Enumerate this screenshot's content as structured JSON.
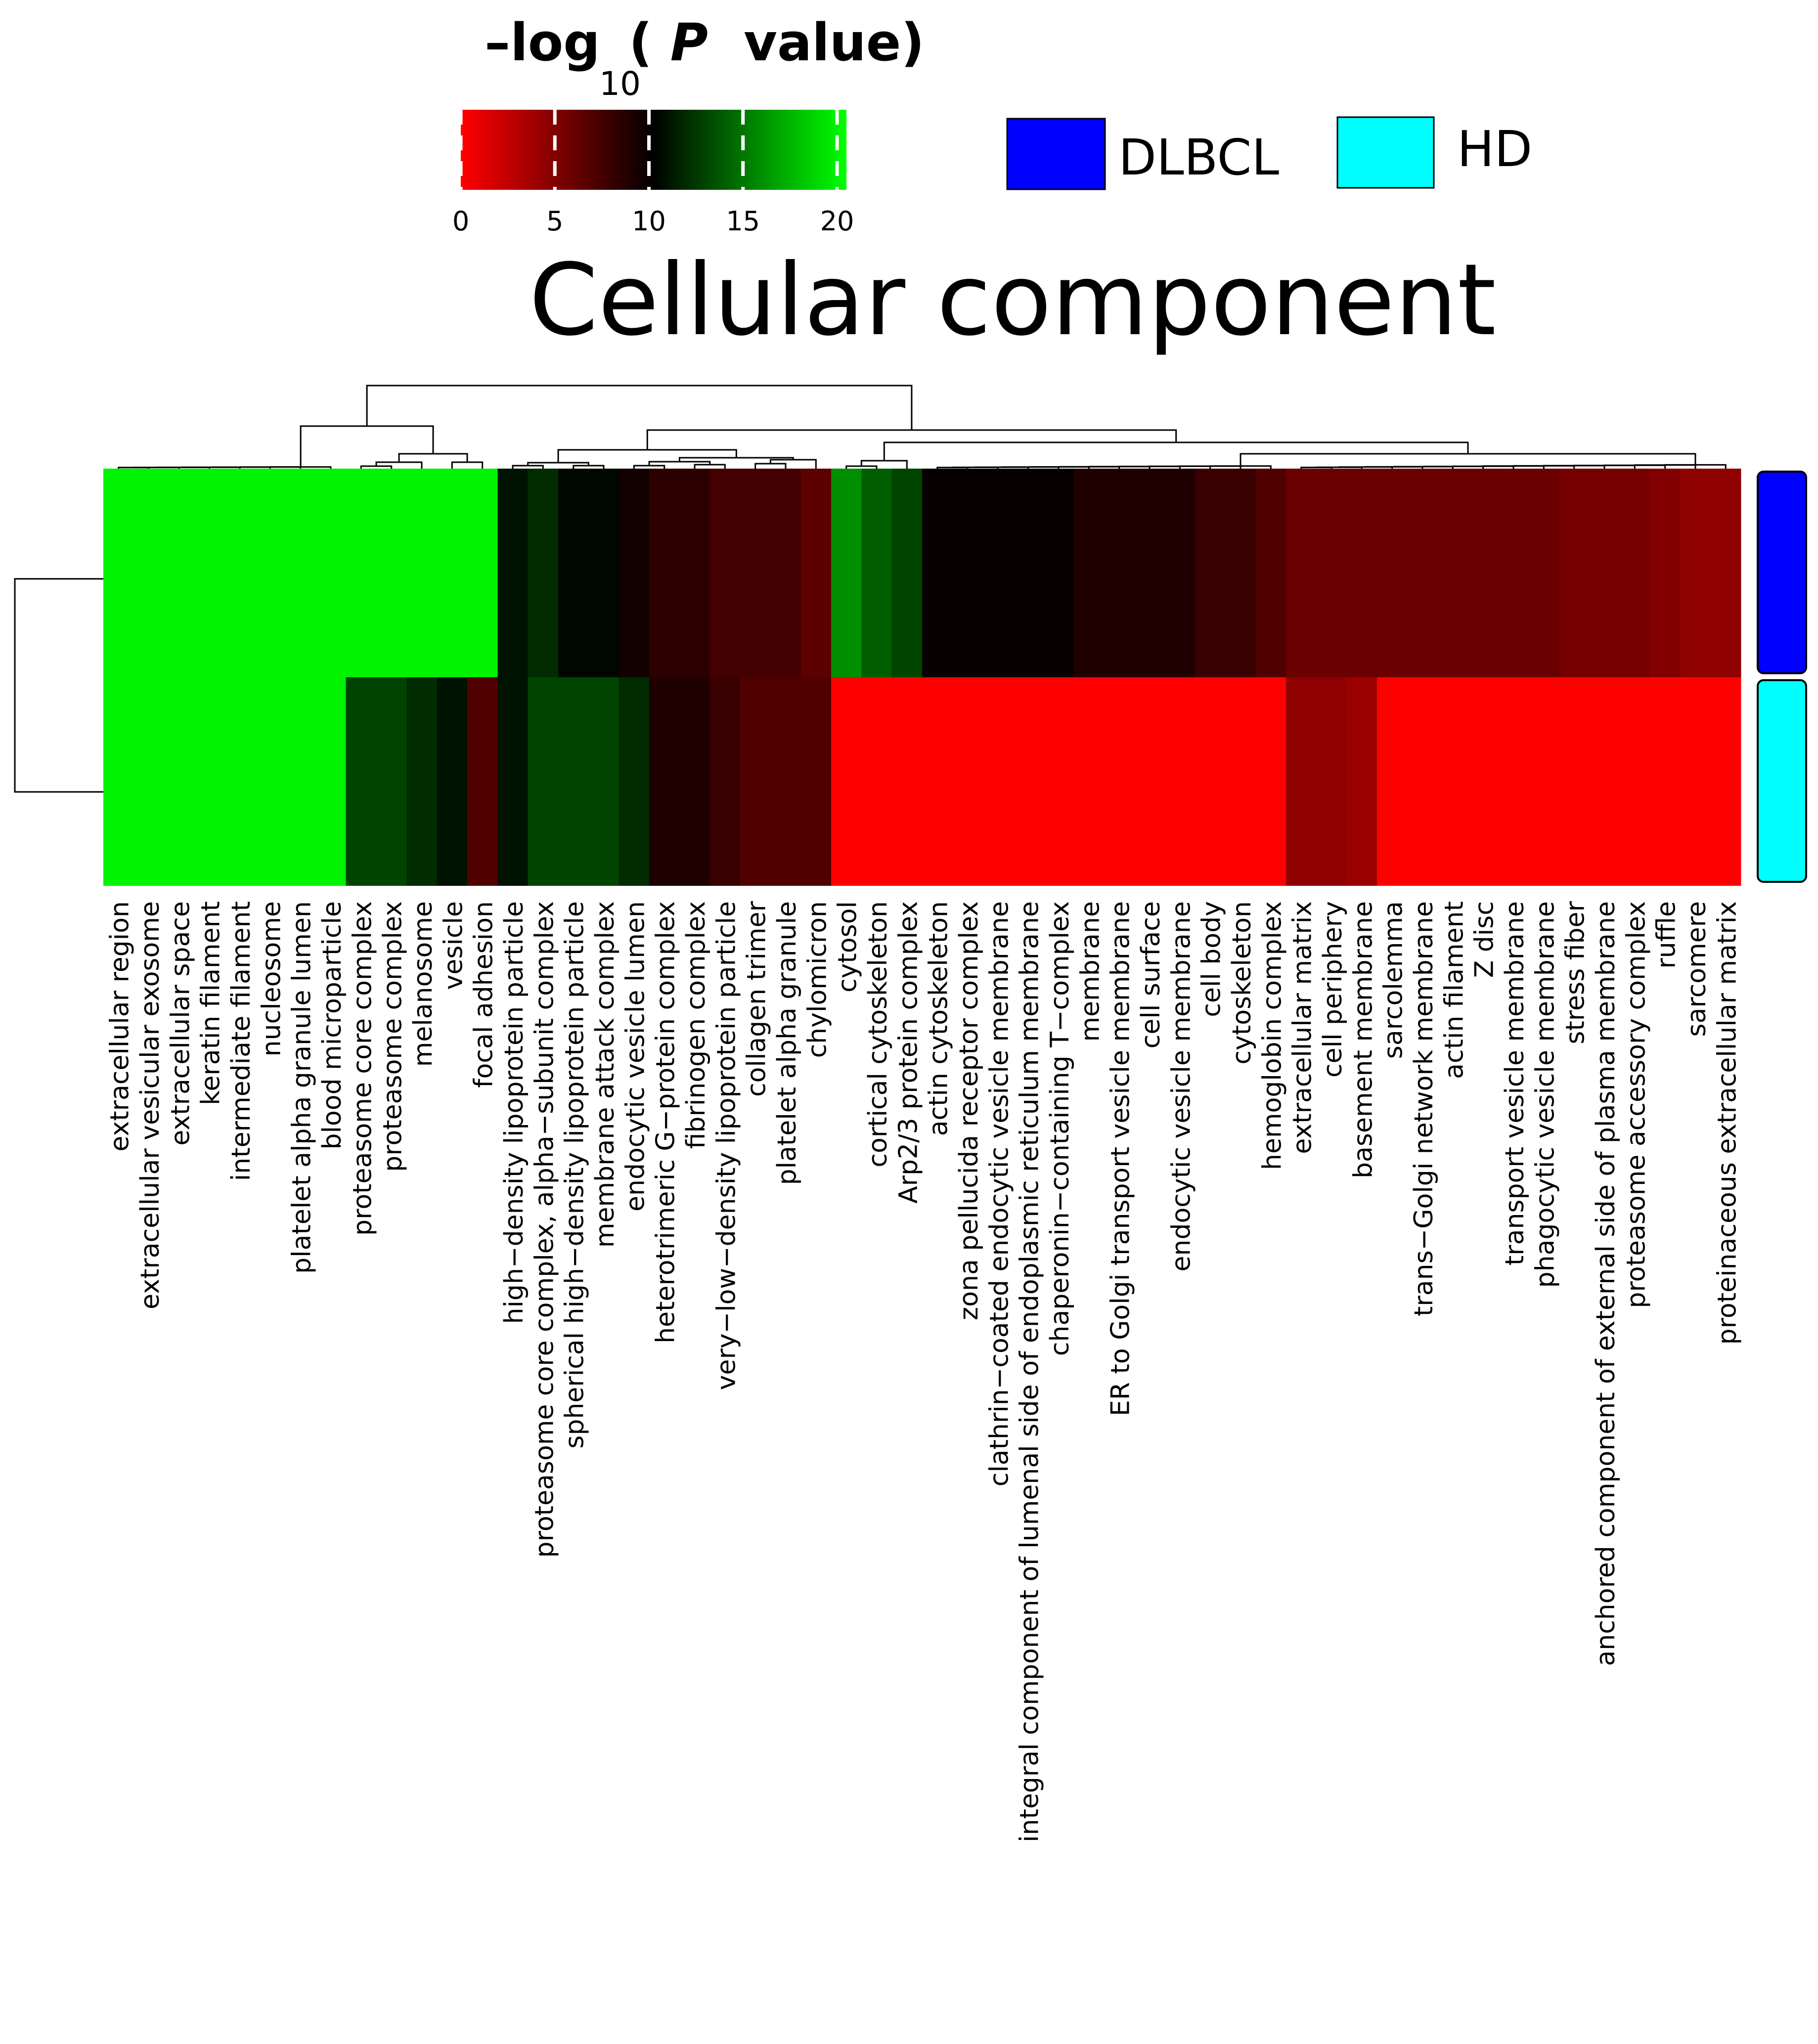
{
  "chart_data": {
    "type": "heatmap",
    "title": "Cellular component",
    "color_key": {
      "title_prefix": "–log",
      "title_paren_open": "(",
      "title_p": "P",
      "title_value": "value)",
      "title_sub": "10",
      "ticks": [
        "0",
        "5",
        "10",
        "15",
        "20"
      ],
      "range": [
        0,
        20.5
      ],
      "colors": {
        "low": "#ff0000",
        "mid": "#000000",
        "high": "#00ff00"
      }
    },
    "legend": {
      "placement": "top-right",
      "items": [
        {
          "label": "DLBCL",
          "color": "#0000ff"
        },
        {
          "label": "HD",
          "color": "#00ffff"
        }
      ]
    },
    "rows": [
      "DLBCL",
      "HD"
    ],
    "row_colors": [
      "#0000ff",
      "#00ffff"
    ],
    "columns": [
      "extracellular region",
      "extracellular vesicular exosome",
      "extracellular space",
      "keratin filament",
      "intermediate filament",
      "nucleosome",
      "platelet alpha granule lumen",
      "blood microparticle",
      "proteasome core complex",
      "proteasome complex",
      "melanosome",
      "vesicle",
      "focal adhesion",
      "high−density lipoprotein particle",
      "proteasome core complex, alpha−subunit complex",
      "spherical high−density lipoprotein particle",
      "membrane attack complex",
      "endocytic vesicle lumen",
      "heterotrimeric G−protein complex",
      "fibrinogen complex",
      "very−low−density lipoprotein particle",
      "collagen trimer",
      "platelet alpha granule",
      "chylomicron",
      "cytosol",
      "cortical cytoskeleton",
      "Arp2/3 protein complex",
      "actin cytoskeleton",
      "zona pellucida receptor complex",
      "clathrin−coated endocytic vesicle membrane",
      "integral component of lumenal side of endoplasmic reticulum membrane",
      "chaperonin−containing T−complex",
      "membrane",
      "ER to Golgi transport vesicle membrane",
      "cell surface",
      "endocytic vesicle membrane",
      "cell body",
      "cytoskeleton",
      "hemoglobin complex",
      "extracellular matrix",
      "cell periphery",
      "basement membrane",
      "sarcolemma",
      "trans−Golgi network membrane",
      "actin filament",
      "Z disc",
      "transport vesicle membrane",
      "phagocytic vesicle membrane",
      "stress fiber",
      "anchored component of external side of plasma membrane",
      "proteasome accessory complex",
      "ruffle",
      "sarcomere",
      "proteinaceous extracellular matrix"
    ],
    "values": [
      [
        20,
        20,
        20,
        20,
        20,
        20,
        20,
        20,
        20,
        20,
        20,
        20,
        20,
        11,
        12,
        10.5,
        10.5,
        9.5,
        8.5,
        8.5,
        7.5,
        7.5,
        7.5,
        6.5,
        16,
        14,
        13,
        10,
        10,
        10,
        10,
        10,
        9,
        9,
        9,
        9,
        8,
        8,
        7,
        6,
        6,
        6,
        6,
        6,
        6,
        6,
        6,
        6,
        5.5,
        5.5,
        5.5,
        5,
        4.5,
        4.5
      ],
      [
        20,
        20,
        20,
        20,
        20,
        20,
        20,
        20,
        13,
        13,
        12,
        11,
        7,
        11,
        13,
        13,
        13,
        12,
        9,
        9,
        8,
        7,
        7,
        7,
        0,
        0,
        0,
        0,
        0,
        0,
        0,
        0,
        0,
        0,
        0,
        0,
        0,
        0,
        0,
        4.5,
        4.5,
        4,
        0,
        0,
        0,
        0,
        0,
        0,
        0,
        0,
        0,
        0,
        0,
        0
      ]
    ]
  }
}
